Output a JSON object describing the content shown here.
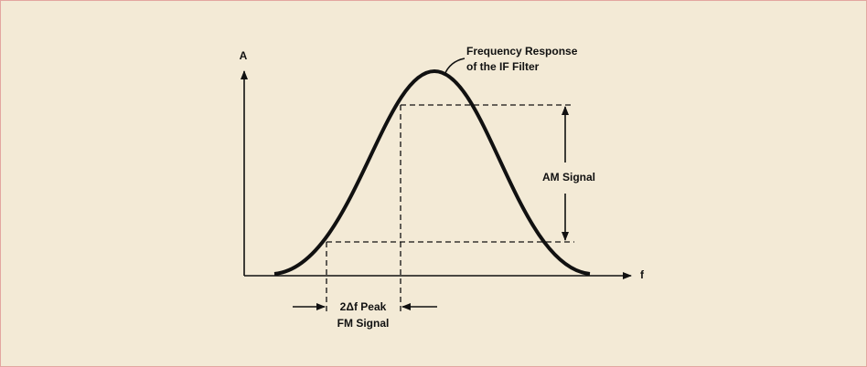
{
  "axes": {
    "y_label": "A",
    "x_label": "f"
  },
  "curve_label": [
    "Frequency Response",
    "of the IF Filter"
  ],
  "am_label": "AM Signal",
  "fm_label": [
    "2Δf Peak",
    "FM Signal"
  ]
}
